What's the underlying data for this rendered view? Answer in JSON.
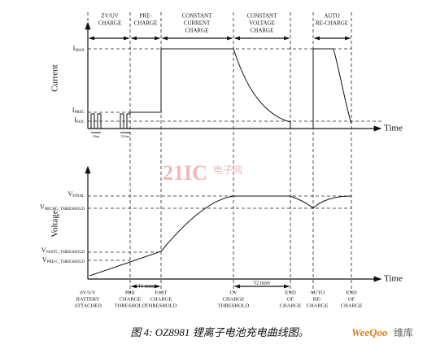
{
  "phases": [
    [
      "ZV/UV",
      "CHARGE"
    ],
    [
      "PRE-",
      "CHARGE"
    ],
    [
      "CONSTANT",
      "CURRENT",
      "CHARGE"
    ],
    [
      "CONSTANT",
      "VOLTAGE",
      "CHARGE"
    ],
    [
      "AUTO",
      "RE-CHARGE"
    ]
  ],
  "current_panel": {
    "axis_label": "Current",
    "time_label": "Time",
    "levels": [
      {
        "main": "I",
        "sub": "MAX"
      },
      {
        "main": "I",
        "sub": "PREC"
      },
      {
        "main": "I",
        "sub": "EOC"
      }
    ],
    "pulse_labels": [
      "10ms",
      "512ms"
    ]
  },
  "voltage_panel": {
    "axis_label": "Voltage",
    "time_label": "Time",
    "levels": [
      {
        "main": "V",
        "sub": "FINAL"
      },
      {
        "main": "V",
        "sub": "RECHG_THRESHOLD"
      },
      {
        "main": "V",
        "sub": "FASTC_THRESHOLD"
      },
      {
        "main": "V",
        "sub": "PRE-C_THRESHOLD"
      }
    ],
    "timers": [
      "T1 timer",
      "T2 timer"
    ],
    "events": [
      [
        "0V/UV",
        "BATTERY",
        "ATTACHED"
      ],
      [
        "PRE",
        "CHARGE",
        "THRESHOLD"
      ],
      [
        "FAST",
        "CHARGE",
        "THRESHOLD"
      ],
      [
        "CV",
        "CHARGE",
        "THRESHOLD"
      ],
      [
        "END",
        "OF",
        "CHARGE"
      ],
      [
        "AUTO",
        "RE-",
        "CHARGE"
      ],
      [
        "END",
        "OF",
        "CHARGE"
      ]
    ]
  },
  "watermarks": [
    "21IC",
    "电子网",
    "WeeQoo",
    "维库"
  ],
  "caption": "图 4: OZ8981 锂离子电池充电曲线图。"
}
